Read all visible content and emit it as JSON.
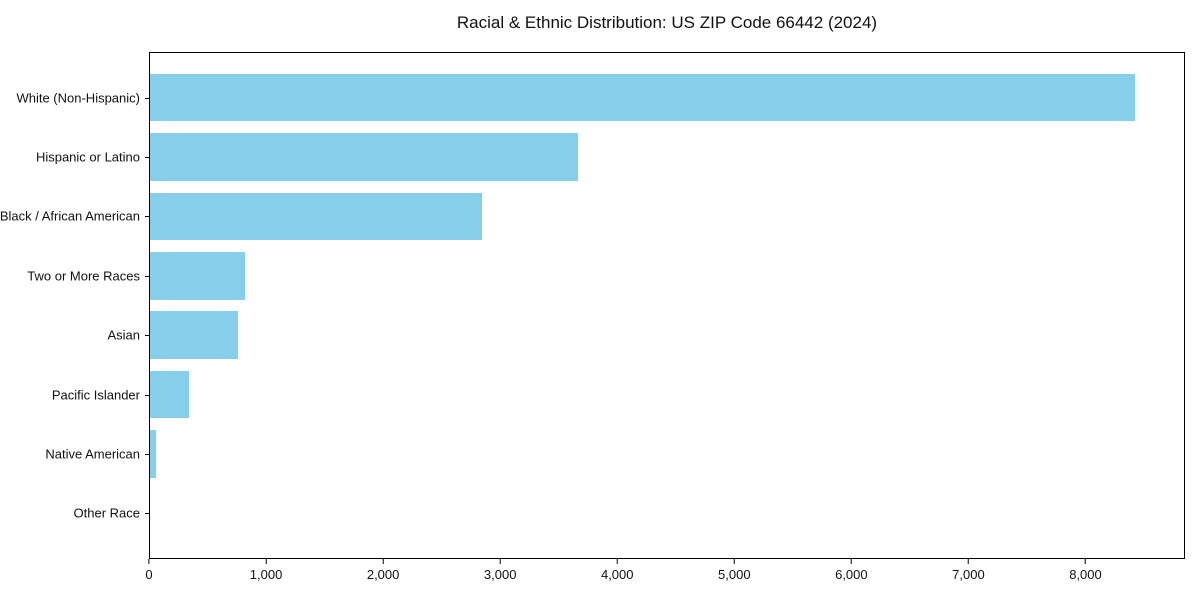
{
  "title": "Racial & Ethnic Distribution: US ZIP Code 66442 (2024)",
  "colors": {
    "bar": "#87CEEB",
    "axis": "#000000",
    "background": "#FFFFFF",
    "text": "#111111"
  },
  "chart_data": {
    "type": "bar",
    "orientation": "horizontal",
    "title": "Racial & Ethnic Distribution: US ZIP Code 66442 (2024)",
    "categories": [
      "White (Non-Hispanic)",
      "Hispanic or Latino",
      "Black / African American",
      "Two or More Races",
      "Asian",
      "Pacific Islander",
      "Native American",
      "Other Race"
    ],
    "values": [
      8430,
      3660,
      2840,
      815,
      750,
      335,
      55,
      0
    ],
    "xlabel": "",
    "ylabel": "",
    "xlim": [
      0,
      8850
    ],
    "xticks": [
      {
        "value": 0,
        "label": "0"
      },
      {
        "value": 1000,
        "label": "1,000"
      },
      {
        "value": 2000,
        "label": "2,000"
      },
      {
        "value": 3000,
        "label": "3,000"
      },
      {
        "value": 4000,
        "label": "4,000"
      },
      {
        "value": 5000,
        "label": "5,000"
      },
      {
        "value": 6000,
        "label": "6,000"
      },
      {
        "value": 7000,
        "label": "7,000"
      },
      {
        "value": 8000,
        "label": "8,000"
      }
    ],
    "grid": false,
    "legend": false,
    "bar_color": "#87CEEB",
    "category_order": "top-to-bottom"
  }
}
